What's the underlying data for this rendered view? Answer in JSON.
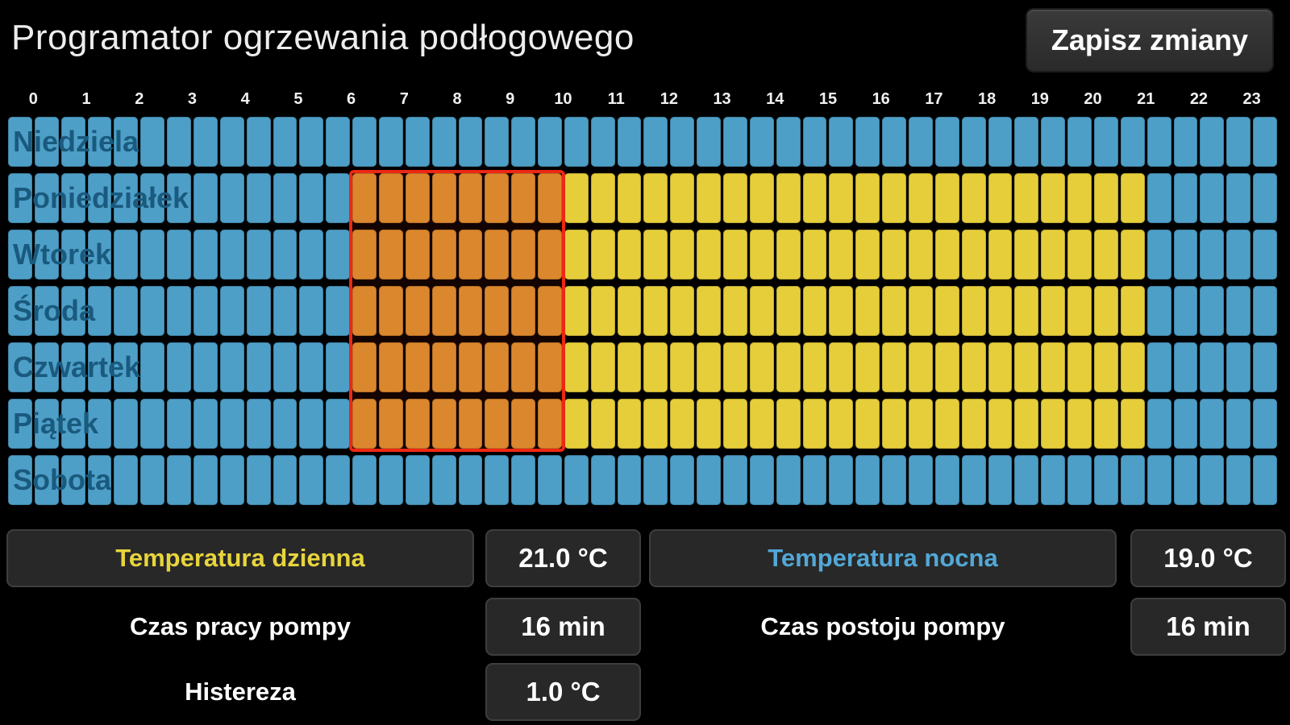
{
  "header": {
    "title": "Programator ogrzewania podłogowego",
    "save_button_label": "Zapisz zmiany"
  },
  "grid": {
    "hours": [
      "0",
      "1",
      "2",
      "3",
      "4",
      "5",
      "6",
      "7",
      "8",
      "9",
      "10",
      "11",
      "12",
      "13",
      "14",
      "15",
      "16",
      "17",
      "18",
      "19",
      "20",
      "21",
      "22",
      "23"
    ],
    "slots_per_hour": 2,
    "days": [
      {
        "label": "Niedziela",
        "segments": [
          {
            "state": "night",
            "slots": 48
          }
        ]
      },
      {
        "label": "Poniedziałek",
        "segments": [
          {
            "state": "night",
            "slots": 13
          },
          {
            "state": "selected",
            "slots": 8
          },
          {
            "state": "day",
            "slots": 22
          },
          {
            "state": "night",
            "slots": 5
          }
        ]
      },
      {
        "label": "Wtorek",
        "segments": [
          {
            "state": "night",
            "slots": 13
          },
          {
            "state": "selected",
            "slots": 8
          },
          {
            "state": "day",
            "slots": 22
          },
          {
            "state": "night",
            "slots": 5
          }
        ]
      },
      {
        "label": "Środa",
        "segments": [
          {
            "state": "night",
            "slots": 13
          },
          {
            "state": "selected",
            "slots": 8
          },
          {
            "state": "day",
            "slots": 22
          },
          {
            "state": "night",
            "slots": 5
          }
        ]
      },
      {
        "label": "Czwartek",
        "segments": [
          {
            "state": "night",
            "slots": 13
          },
          {
            "state": "selected",
            "slots": 8
          },
          {
            "state": "day",
            "slots": 22
          },
          {
            "state": "night",
            "slots": 5
          }
        ]
      },
      {
        "label": "Piątek",
        "segments": [
          {
            "state": "night",
            "slots": 13
          },
          {
            "state": "selected",
            "slots": 8
          },
          {
            "state": "day",
            "slots": 22
          },
          {
            "state": "night",
            "slots": 5
          }
        ]
      },
      {
        "label": "Sobota",
        "segments": [
          {
            "state": "night",
            "slots": 48
          }
        ]
      }
    ],
    "selection": {
      "first_day_index": 1,
      "last_day_index": 5,
      "first_slot": 13,
      "last_slot": 20
    }
  },
  "controls": {
    "temp_day": {
      "label": "Temperatura dzienna",
      "value": "21.0 °C"
    },
    "temp_night": {
      "label": "Temperatura nocna",
      "value": "19.0 °C"
    },
    "pump_work": {
      "label": "Czas pracy pompy",
      "value": "16 min"
    },
    "pump_idle": {
      "label": "Czas postoju pompy",
      "value": "16 min"
    },
    "hysteresis": {
      "label": "Histereza",
      "value": "1.0 °C"
    }
  },
  "colors": {
    "cell_night": "#4E9FC7",
    "cell_day": "#E6CE3B",
    "cell_selected": "#DF9230",
    "selection_border": "#EE2713",
    "day_label_text": "#1A5A7E",
    "temp_day_label": "#E8D53C",
    "temp_night_label": "#52A8D6"
  }
}
